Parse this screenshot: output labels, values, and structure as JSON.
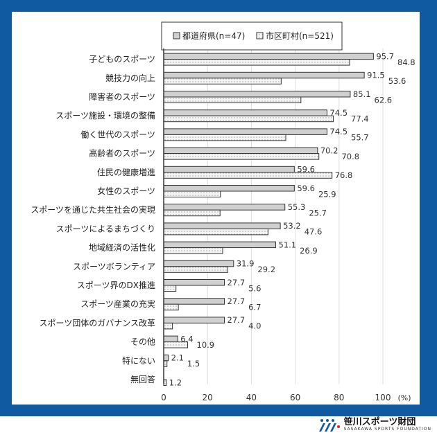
{
  "chart_data": {
    "type": "bar",
    "orientation": "horizontal",
    "categories": [
      "子どものスポーツ",
      "競技力の向上",
      "障害者のスポーツ",
      "スポーツ施設・環境の整備",
      "働く世代のスポーツ",
      "高齢者のスポーツ",
      "住民の健康増進",
      "女性のスポーツ",
      "スポーツを通じた共生社会の実現",
      "スポーツによるまちづくり",
      "地域経済の活性化",
      "スポーツボランティア",
      "スポーツ界のDX推進",
      "スポーツ産業の充実",
      "スポーツ団体のガバナンス改革",
      "その他",
      "特にない",
      "無回答"
    ],
    "series": [
      {
        "name": "都道府県(n=47)",
        "color": "#d0d0d0",
        "pattern": "solid",
        "values": [
          95.7,
          91.5,
          85.1,
          74.5,
          74.5,
          70.2,
          59.6,
          59.6,
          55.3,
          53.2,
          51.1,
          31.9,
          27.7,
          27.7,
          27.7,
          6.4,
          2.1,
          null
        ]
      },
      {
        "name": "市区町村(n=521)",
        "color": "#f2f2f2",
        "pattern": "dotted",
        "values": [
          84.8,
          53.6,
          62.6,
          77.4,
          55.7,
          70.8,
          76.8,
          25.9,
          25.7,
          47.6,
          26.9,
          29.2,
          5.6,
          6.7,
          4.0,
          10.9,
          1.5,
          1.2
        ]
      }
    ],
    "xlim": [
      0,
      100
    ],
    "xticks": [
      "0",
      "20",
      "40",
      "60",
      "80",
      "100"
    ],
    "xunit": "(%)",
    "grid": "vertical",
    "legend": "top"
  },
  "footer": {
    "logo_jp": "笹川スポーツ財団",
    "logo_en": "SASAKAWA SPORTS FOUNDATION"
  }
}
